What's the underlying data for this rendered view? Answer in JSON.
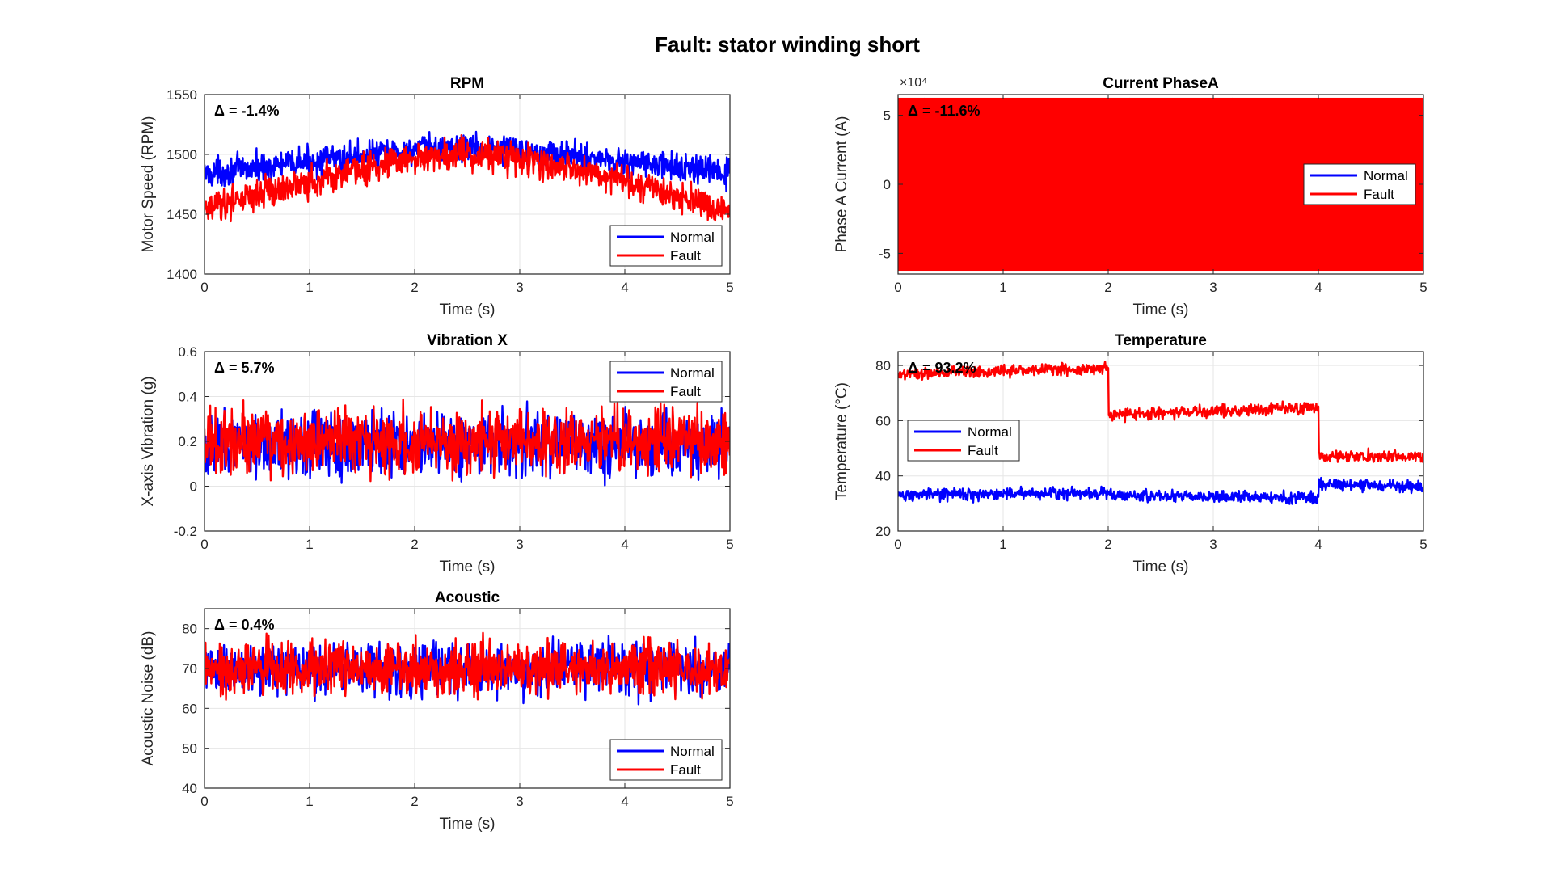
{
  "figure": {
    "title": "Fault: stator winding short"
  },
  "colors": {
    "normal": "#0000ff",
    "fault": "#ff0000",
    "axis": "#262626",
    "grid": "#e6e6e6"
  },
  "chart_data": [
    {
      "type": "line",
      "title": "RPM",
      "xlabel": "Time (s)",
      "ylabel": "Motor Speed (RPM)",
      "xlim": [
        0,
        5
      ],
      "ylim": [
        1400,
        1550
      ],
      "xticks": [
        0,
        1,
        2,
        3,
        4,
        5
      ],
      "yticks": [
        1400,
        1450,
        1500,
        1550
      ],
      "ytick_labels": [
        "1400",
        "1450",
        "1500",
        "1550"
      ],
      "grid": true,
      "legend": "bottom-right",
      "delta_label": "Δ = -1.4%",
      "series": [
        {
          "name": "Normal",
          "color": "#0000ff",
          "shape": "arch",
          "x": [
            0,
            1,
            2,
            2.5,
            3,
            4,
            5
          ],
          "y": [
            1484,
            1494,
            1504,
            1506,
            1504,
            1494,
            1484
          ],
          "noise": 11
        },
        {
          "name": "Fault",
          "color": "#ff0000",
          "shape": "arch",
          "x": [
            0,
            1,
            2,
            2.5,
            3,
            4,
            5
          ],
          "y": [
            1455,
            1478,
            1497,
            1500,
            1496,
            1478,
            1452
          ],
          "noise": 12
        }
      ]
    },
    {
      "type": "line",
      "title": "Current PhaseA",
      "xlabel": "Time (s)",
      "ylabel": "Phase A Current (A)",
      "xlim": [
        0,
        5
      ],
      "ylim": [
        -65000,
        65000
      ],
      "xticks": [
        0,
        1,
        2,
        3,
        4,
        5
      ],
      "yticks": [
        -50000,
        0,
        50000
      ],
      "ytick_labels": [
        "-5",
        "0",
        "5"
      ],
      "y_exponent_label": "×10⁴",
      "grid": true,
      "legend": "middle-right",
      "delta_label": "Δ = -11.6%",
      "series": [
        {
          "name": "Normal",
          "color": "#0000ff",
          "shape": "sine",
          "amplitude": 55000
        },
        {
          "name": "Fault",
          "color": "#ff0000",
          "shape": "sine",
          "amplitude": 62000
        }
      ]
    },
    {
      "type": "line",
      "title": "Vibration X",
      "xlabel": "Time (s)",
      "ylabel": "X-axis Vibration (g)",
      "xlim": [
        0,
        5
      ],
      "ylim": [
        -0.2,
        0.6
      ],
      "xticks": [
        0,
        1,
        2,
        3,
        4,
        5
      ],
      "yticks": [
        -0.2,
        0,
        0.2,
        0.4,
        0.6
      ],
      "ytick_labels": [
        "-0.2",
        "0",
        "0.2",
        "0.4",
        "0.6"
      ],
      "grid": true,
      "legend": "top-right",
      "delta_label": "Δ = 5.7%",
      "series": [
        {
          "name": "Normal",
          "color": "#0000ff",
          "shape": "band",
          "x": [
            0,
            5
          ],
          "y": [
            0.19,
            0.19
          ],
          "noise": 0.13
        },
        {
          "name": "Fault",
          "color": "#ff0000",
          "shape": "band",
          "x": [
            0,
            5
          ],
          "y": [
            0.2,
            0.2
          ],
          "noise": 0.13
        }
      ]
    },
    {
      "type": "line",
      "title": "Temperature",
      "xlabel": "Time (s)",
      "ylabel": "Temperature (°C)",
      "xlim": [
        0,
        5
      ],
      "ylim": [
        20,
        85
      ],
      "xticks": [
        0,
        1,
        2,
        3,
        4,
        5
      ],
      "yticks": [
        20,
        40,
        60,
        80
      ],
      "ytick_labels": [
        "20",
        "40",
        "60",
        "80"
      ],
      "grid": true,
      "legend": "middle-left",
      "delta_label": "Δ = 93.2%",
      "series": [
        {
          "name": "Normal",
          "color": "#0000ff",
          "shape": "step",
          "x": [
            0,
            2,
            2,
            4,
            4,
            5
          ],
          "y": [
            33,
            34,
            33,
            32,
            37,
            36
          ],
          "noise": 2
        },
        {
          "name": "Fault",
          "color": "#ff0000",
          "shape": "step",
          "x": [
            0,
            2,
            2,
            4,
            4,
            5
          ],
          "y": [
            77,
            79,
            62,
            65,
            47,
            47
          ],
          "noise": 2
        }
      ]
    },
    {
      "type": "line",
      "title": "Acoustic",
      "xlabel": "Time (s)",
      "ylabel": "Acoustic Noise (dB)",
      "xlim": [
        0,
        5
      ],
      "ylim": [
        40,
        85
      ],
      "xticks": [
        0,
        1,
        2,
        3,
        4,
        5
      ],
      "yticks": [
        40,
        50,
        60,
        70,
        80
      ],
      "ytick_labels": [
        "40",
        "50",
        "60",
        "70",
        "80"
      ],
      "grid": true,
      "legend": "bottom-right",
      "delta_label": "Δ = 0.4%",
      "series": [
        {
          "name": "Normal",
          "color": "#0000ff",
          "shape": "band",
          "x": [
            0,
            5
          ],
          "y": [
            70,
            70
          ],
          "noise": 6
        },
        {
          "name": "Fault",
          "color": "#ff0000",
          "shape": "band",
          "x": [
            0,
            5
          ],
          "y": [
            70,
            70
          ],
          "noise": 6
        }
      ]
    }
  ]
}
